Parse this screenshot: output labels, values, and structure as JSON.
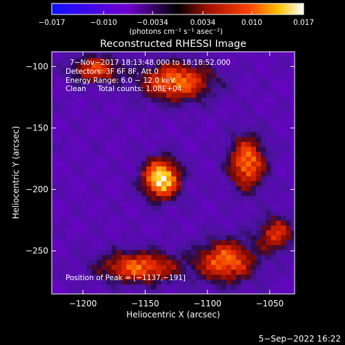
{
  "chart_data": {
    "type": "heatmap",
    "title": "Reconstructed RHESSI Image",
    "xlabel": "Heliocentric X (arcsec)",
    "ylabel": "Heliocentric Y (arcsec)",
    "xlim": [
      -1225,
      -1030
    ],
    "ylim": [
      -285,
      -88
    ],
    "x_ticks": [
      -1200,
      -1150,
      -1100,
      -1050
    ],
    "y_ticks": [
      -100,
      -150,
      -200,
      -250
    ],
    "x_tick_labels": [
      "−1200",
      "−1150",
      "−1100",
      "−1050"
    ],
    "y_tick_labels": [
      "−100",
      "−150",
      "−200",
      "−250"
    ],
    "colorbar": {
      "range": [
        -0.017,
        0.017
      ],
      "ticks": [
        -0.017,
        -0.01,
        -0.0034,
        0.0034,
        0.01,
        0.017
      ],
      "tick_labels": [
        "−0.017",
        "−0.010",
        "−0.0034",
        "0.0034",
        "0.010",
        "0.017"
      ],
      "units": "(photons cm⁻² s⁻¹ asec⁻²)"
    },
    "annotations": [
      "7−Nov−2017 18:13:48.000 to 18:18:52.000",
      "Detectors: 3F 6F 8F, Att 0",
      "Energy Range: 6.0 − 12.0 keV",
      "Clean     Total counts: 1.08E+04"
    ],
    "peak_label": "Position of Peak = [−1137,−191]",
    "peak": {
      "x": -1137,
      "y": -191,
      "value": 0.017
    },
    "sources": [
      {
        "x": -1137,
        "y": -191,
        "amp": 1.0,
        "sx": 10,
        "sy": 11
      },
      {
        "x": -1068,
        "y": -178,
        "amp": 0.62,
        "sx": 10,
        "sy": 15
      },
      {
        "x": -1085,
        "y": -258,
        "amp": 0.58,
        "sx": 16,
        "sy": 12
      },
      {
        "x": -1155,
        "y": -263,
        "amp": 0.55,
        "sx": 22,
        "sy": 9
      },
      {
        "x": -1125,
        "y": -112,
        "amp": 0.6,
        "sx": 20,
        "sy": 11
      },
      {
        "x": -1190,
        "y": -102,
        "amp": 0.42,
        "sx": 14,
        "sy": 8
      },
      {
        "x": -1045,
        "y": -236,
        "amp": 0.38,
        "sx": 10,
        "sy": 10
      }
    ]
  },
  "timestamp": "5−Sep−2022 16:22"
}
